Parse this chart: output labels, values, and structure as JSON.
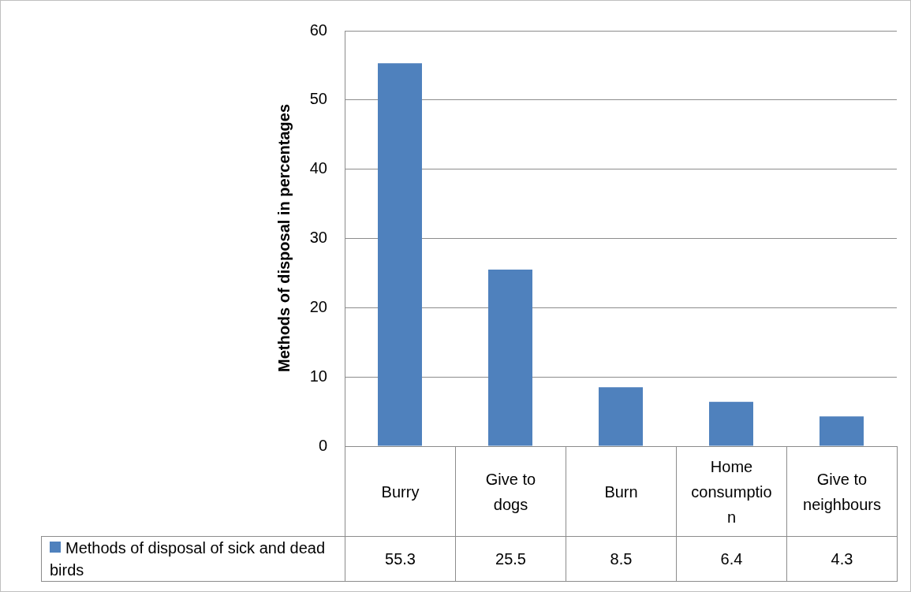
{
  "chart_data": {
    "type": "bar",
    "ylabel": "Methods of disposal in percentages",
    "categories": [
      "Burry",
      "Give to dogs",
      "Burn",
      "Home consumption",
      "Give to neighbours"
    ],
    "series": [
      {
        "name": "Methods of disposal of sick and dead birds",
        "color": "#4f81bd",
        "values": [
          55.3,
          25.5,
          8.5,
          6.4,
          4.3
        ]
      }
    ],
    "ylim": [
      0,
      60
    ],
    "yticks": [
      0,
      10,
      20,
      30,
      40,
      50,
      60
    ],
    "grid": "y",
    "legend": "bottom",
    "data_labels": true
  }
}
